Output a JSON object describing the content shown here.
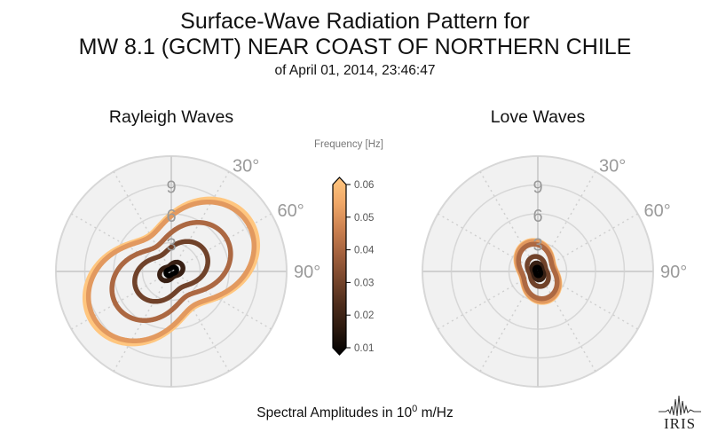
{
  "header": {
    "title_line1": "Surface-Wave Radiation Pattern for",
    "title_line2": "MW 8.1 (GCMT) NEAR COAST OF NORTHERN CHILE",
    "title_line3": "of April 01, 2014, 23:46:47"
  },
  "footer": {
    "amplitude_label_prefix": "Spectral Amplitudes in 10",
    "amplitude_label_exponent": "0",
    "amplitude_label_suffix": " m/Hz",
    "logo_text": "IRIS"
  },
  "chart_data": [
    {
      "type": "line",
      "subtype": "polar",
      "title": "Rayleigh Waves",
      "radial_tick_labels": [
        "3",
        "6",
        "9"
      ],
      "angle_tick_labels": [
        "30°",
        "60°",
        "90°"
      ],
      "rmax": 12,
      "grid": true,
      "series": [
        {
          "frequency": 0.01,
          "amplitude_max": 0.6,
          "lobe_axis_deg": 62,
          "lobe_shape": 0.55
        },
        {
          "frequency": 0.02,
          "amplitude_max": 1.3,
          "lobe_axis_deg": 61,
          "lobe_shape": 0.55
        },
        {
          "frequency": 0.03,
          "amplitude_max": 4.1,
          "lobe_axis_deg": 59,
          "lobe_shape": 0.52
        },
        {
          "frequency": 0.04,
          "amplitude_max": 6.7,
          "lobe_axis_deg": 58,
          "lobe_shape": 0.55
        },
        {
          "frequency": 0.05,
          "amplitude_max": 9.4,
          "lobe_axis_deg": 57,
          "lobe_shape": 0.55
        },
        {
          "frequency": 0.06,
          "amplitude_max": 9.8,
          "lobe_axis_deg": 57,
          "lobe_shape": 0.55
        }
      ]
    },
    {
      "type": "line",
      "subtype": "polar",
      "title": "Love Waves",
      "radial_tick_labels": [
        "3",
        "6",
        "9"
      ],
      "angle_tick_labels": [
        "30°",
        "60°",
        "90°"
      ],
      "rmax": 12,
      "grid": true,
      "series": [
        {
          "frequency": 0.01,
          "amplitude_max": 0.45,
          "lobe_axis_deg": 162,
          "lobe_shape": 0.45
        },
        {
          "frequency": 0.02,
          "amplitude_max": 0.9,
          "lobe_axis_deg": 162,
          "lobe_shape": 0.45
        },
        {
          "frequency": 0.03,
          "amplitude_max": 1.6,
          "lobe_axis_deg": 162,
          "lobe_shape": 0.45
        },
        {
          "frequency": 0.04,
          "amplitude_max": 2.9,
          "lobe_axis_deg": 162,
          "lobe_shape": 0.45
        },
        {
          "frequency": 0.05,
          "amplitude_max": 3.2,
          "lobe_axis_deg": 162,
          "lobe_shape": 0.45
        },
        {
          "frequency": 0.06,
          "amplitude_max": 3.3,
          "lobe_axis_deg": 162,
          "lobe_shape": 0.45
        }
      ]
    }
  ],
  "colorbar": {
    "label": "Frequency [Hz]",
    "ticks": [
      "0.06",
      "0.05",
      "0.04",
      "0.03",
      "0.02",
      "0.01"
    ],
    "min": 0.01,
    "max": 0.06,
    "colors": [
      "#000000",
      "#2a180e",
      "#4e2d1c",
      "#79472d",
      "#a4623e",
      "#cd8251",
      "#f0a868",
      "#ffc67f"
    ]
  }
}
